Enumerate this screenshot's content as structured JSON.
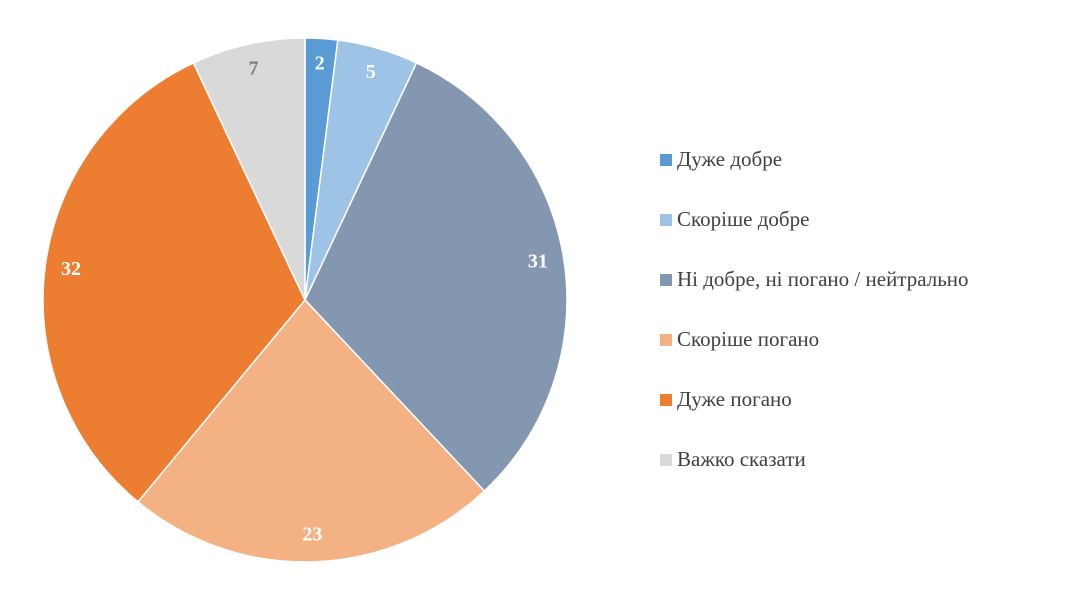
{
  "chart_data": {
    "type": "pie",
    "categories": [
      "Дуже добре",
      "Скоріше добре",
      "Ні добре, ні погано / нейтрально",
      "Скоріше погано",
      "Дуже погано",
      "Важко сказати"
    ],
    "values": [
      2,
      5,
      31,
      23,
      32,
      7
    ],
    "colors": [
      "#5b9bd5",
      "#9dc3e6",
      "#8497b0",
      "#f4b183",
      "#ed7d31",
      "#d9d9d9"
    ],
    "legend": "right"
  }
}
